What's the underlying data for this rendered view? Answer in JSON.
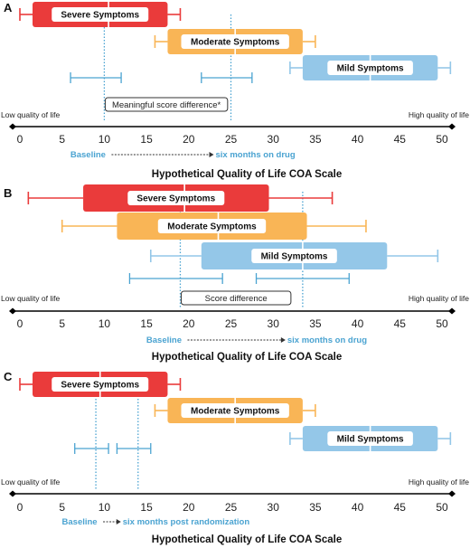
{
  "colors": {
    "severe": "#ea3b3b",
    "moderate": "#f9b556",
    "mild": "#94c7e8",
    "marker_blue": "#4aa3d1",
    "axis": "#000000"
  },
  "axis": {
    "ticks": [
      "0",
      "5",
      "10",
      "15",
      "20",
      "25",
      "30",
      "35",
      "40",
      "45",
      "50"
    ],
    "left_label": "Low quality of life",
    "right_label": "High quality of life",
    "title": "Hypothetical Quality of Life COA Scale"
  },
  "chart_data": [
    {
      "panel": "A",
      "type": "box",
      "xlim": [
        0,
        50
      ],
      "boxes": [
        {
          "label": "Severe Symptoms",
          "color": "severe",
          "whisker_low": 0,
          "box_low": 1.5,
          "median": 10.5,
          "box_high": 17.5,
          "whisker_high": 19
        },
        {
          "label": "Moderate Symptoms",
          "color": "moderate",
          "whisker_low": 16,
          "box_low": 17.5,
          "median": 25.5,
          "box_high": 33.5,
          "whisker_high": 35
        },
        {
          "label": "Mild Symptoms",
          "color": "mild",
          "whisker_low": 32,
          "box_low": 33.5,
          "median": 41.5,
          "box_high": 49.5,
          "whisker_high": 51
        }
      ],
      "intervals": [
        {
          "low": 6,
          "high": 12
        },
        {
          "low": 21.5,
          "high": 27.5
        }
      ],
      "markers": [
        10,
        25
      ],
      "annotation": {
        "text": "Meaningful score difference*",
        "from": 10,
        "to": 24.5
      },
      "baseline_label": "Baseline",
      "followup_label": "six months on drug"
    },
    {
      "panel": "B",
      "type": "box",
      "xlim": [
        0,
        50
      ],
      "boxes": [
        {
          "label": "Severe Symptoms",
          "color": "severe",
          "whisker_low": 1,
          "box_low": 7.5,
          "median": 19.5,
          "box_high": 29.5,
          "whisker_high": 37
        },
        {
          "label": "Moderate Symptoms",
          "color": "moderate",
          "whisker_low": 5,
          "box_low": 11.5,
          "median": 23.5,
          "box_high": 34,
          "whisker_high": 41
        },
        {
          "label": "Mild Symptoms",
          "color": "mild",
          "whisker_low": 15.5,
          "box_low": 21.5,
          "median": 33.5,
          "box_high": 43.5,
          "whisker_high": 49.5
        }
      ],
      "intervals": [
        {
          "low": 13,
          "high": 24
        },
        {
          "low": 28,
          "high": 39
        }
      ],
      "markers": [
        19,
        33.5
      ],
      "annotation": {
        "text": "Score difference",
        "from": 19,
        "to": 32
      },
      "baseline_label": "Baseline",
      "followup_label": "six months on drug"
    },
    {
      "panel": "C",
      "type": "box",
      "xlim": [
        0,
        50
      ],
      "boxes": [
        {
          "label": "Severe Symptoms",
          "color": "severe",
          "whisker_low": 0,
          "box_low": 1.5,
          "median": 9.5,
          "box_high": 17.5,
          "whisker_high": 19
        },
        {
          "label": "Moderate Symptoms",
          "color": "moderate",
          "whisker_low": 16,
          "box_low": 17.5,
          "median": 25.5,
          "box_high": 33.5,
          "whisker_high": 35
        },
        {
          "label": "Mild Symptoms",
          "color": "mild",
          "whisker_low": 32,
          "box_low": 33.5,
          "median": 41.5,
          "box_high": 49.5,
          "whisker_high": 51
        }
      ],
      "intervals": [
        {
          "low": 6.5,
          "high": 10.5
        },
        {
          "low": 11.5,
          "high": 15.5
        }
      ],
      "markers": [
        9,
        14
      ],
      "annotation": null,
      "baseline_label": "Baseline",
      "followup_label": "six months post randomization"
    }
  ]
}
